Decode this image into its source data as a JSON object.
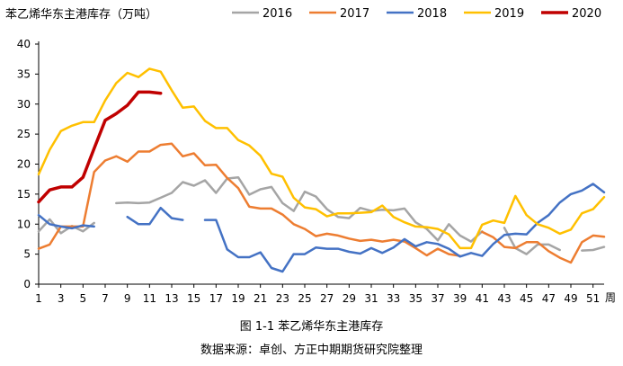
{
  "caption": "图 1-1  苯乙烯华东主港库存",
  "source": "数据来源：卓创、方正中期期货研究院整理",
  "chart_data": {
    "type": "line",
    "title": "苯乙烯华东主港库存（万吨）",
    "xlabel": "周",
    "ylabel": "",
    "xlim": [
      1,
      52
    ],
    "ylim": [
      0,
      40
    ],
    "x_ticks": [
      1,
      3,
      5,
      7,
      9,
      11,
      13,
      15,
      17,
      19,
      21,
      23,
      25,
      27,
      29,
      31,
      33,
      35,
      37,
      39,
      41,
      43,
      45,
      47,
      49,
      51
    ],
    "y_ticks": [
      0,
      5,
      10,
      15,
      20,
      25,
      30,
      35,
      40
    ],
    "grid": false,
    "legend_position": "top",
    "series": [
      {
        "name": "2016",
        "color": "#a5a5a5",
        "width": 2.5,
        "values": [
          8.8,
          10.8,
          8.5,
          9.7,
          8.8,
          10.2,
          null,
          13.5,
          13.6,
          13.5,
          13.6,
          14.4,
          15.2,
          17.0,
          16.4,
          17.3,
          15.2,
          17.6,
          17.8,
          14.9,
          15.8,
          16.2,
          13.5,
          12.2,
          15.4,
          14.6,
          12.5,
          11.2,
          11.0,
          12.7,
          12.2,
          12.4,
          12.3,
          12.6,
          10.3,
          9.2,
          7.3,
          10.0,
          8.1,
          7.1,
          8.8,
          null,
          9.4,
          6.0,
          5.0,
          6.6,
          6.6,
          5.7,
          null,
          5.6,
          5.7,
          6.2
        ]
      },
      {
        "name": "2017",
        "color": "#ed7d31",
        "width": 2.5,
        "values": [
          5.9,
          6.6,
          9.6,
          9.6,
          9.6,
          18.7,
          20.6,
          21.3,
          20.4,
          22.1,
          22.1,
          23.2,
          23.4,
          21.3,
          21.8,
          19.8,
          19.9,
          17.7,
          16.0,
          12.9,
          12.6,
          12.6,
          11.6,
          10.0,
          9.2,
          8.0,
          8.4,
          8.1,
          7.6,
          7.2,
          7.4,
          7.1,
          7.4,
          7.1,
          6.0,
          4.8,
          5.9,
          5.0,
          4.7,
          null,
          8.7,
          7.8,
          6.2,
          6.0,
          7.0,
          7.0,
          5.5,
          4.4,
          3.6,
          7.0,
          8.1,
          7.9
        ]
      },
      {
        "name": "2018",
        "color": "#4472c4",
        "width": 2.5,
        "values": [
          11.5,
          10.0,
          9.6,
          9.3,
          9.8,
          9.6,
          null,
          null,
          11.2,
          10.0,
          10.0,
          12.7,
          11.0,
          10.7,
          null,
          10.7,
          10.7,
          5.8,
          4.5,
          4.5,
          5.3,
          2.7,
          2.1,
          5.0,
          5.0,
          6.1,
          5.9,
          5.9,
          5.4,
          5.1,
          6.0,
          5.2,
          6.1,
          7.5,
          6.3,
          7.0,
          6.7,
          5.9,
          4.6,
          5.2,
          4.7,
          6.7,
          8.2,
          8.4,
          8.3,
          10.2,
          11.5,
          13.6,
          15.0,
          15.6,
          16.7,
          15.3
        ]
      },
      {
        "name": "2019",
        "color": "#ffc000",
        "width": 2.5,
        "values": [
          18.3,
          22.4,
          25.5,
          26.4,
          27.0,
          27.0,
          30.6,
          33.5,
          35.2,
          34.5,
          35.9,
          35.4,
          32.3,
          29.4,
          29.6,
          27.2,
          26.0,
          26.0,
          24.0,
          23.1,
          21.4,
          18.4,
          17.9,
          14.4,
          12.8,
          12.5,
          11.3,
          11.8,
          11.8,
          11.9,
          12.0,
          13.1,
          11.2,
          10.3,
          9.6,
          9.5,
          9.2,
          8.3,
          6.0,
          6.0,
          9.9,
          10.6,
          10.2,
          14.7,
          11.5,
          10.0,
          9.4,
          8.4,
          9.1,
          11.8,
          12.5,
          14.5
        ]
      },
      {
        "name": "2020",
        "color": "#c00000",
        "width": 3.5,
        "values": [
          13.7,
          15.7,
          16.2,
          16.2,
          17.8,
          22.6,
          27.3,
          28.4,
          29.8,
          32.0,
          32.0,
          31.8
        ]
      }
    ]
  }
}
